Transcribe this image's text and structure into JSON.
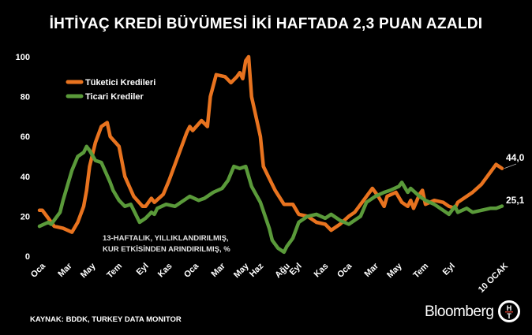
{
  "title": "İHTİYAÇ KREDİ BÜYÜMESİ İKİ HAFTADA 2,3 PUAN AZALDI",
  "source": "KAYNAK: BDDK, TURKEY DATA MONITOR",
  "brand": "Bloomberg",
  "logo_text": "HT",
  "chart_data": {
    "type": "line",
    "title": "İHTİYAÇ KREDİ BÜYÜMESİ İKİ HAFTADA 2,3 PUAN AZALDI",
    "annotation": [
      "13-HAFTALIK, YILLIKLANDIRILMIŞ,",
      "KUR ETKİSİNDEN ARINDIRILMIŞ, %"
    ],
    "ylim": [
      0,
      100
    ],
    "y_ticks": [
      0,
      20,
      40,
      60,
      80,
      100
    ],
    "grid": false,
    "legend_placement": "top-left",
    "x_unit": "week",
    "xlim": [
      0,
      157
    ],
    "x_ticks": [
      {
        "label": "Oca",
        "week": 0
      },
      {
        "label": "Mar",
        "week": 9
      },
      {
        "label": "May",
        "week": 17
      },
      {
        "label": "Tem",
        "week": 26
      },
      {
        "label": "Eyl",
        "week": 35
      },
      {
        "label": "Kas",
        "week": 43
      },
      {
        "label": "Oca",
        "week": 52
      },
      {
        "label": "Mar",
        "week": 61
      },
      {
        "label": "May",
        "week": 69
      },
      {
        "label": "Haz",
        "week": 74
      },
      {
        "label": "Ağu",
        "week": 83
      },
      {
        "label": "Eyl",
        "week": 87
      },
      {
        "label": "Kas",
        "week": 96
      },
      {
        "label": "Oca",
        "week": 104
      },
      {
        "label": "Mar",
        "week": 113
      },
      {
        "label": "May",
        "week": 121
      },
      {
        "label": "Tem",
        "week": 130
      },
      {
        "label": "Eyl",
        "week": 139
      },
      {
        "label": "10 OCAK",
        "week": 157
      }
    ],
    "series": [
      {
        "name": "Tüketici Kredileri",
        "color": "#e8731f",
        "end_label": "44,0",
        "points": [
          [
            0,
            23
          ],
          [
            1,
            23
          ],
          [
            3,
            19
          ],
          [
            5,
            15
          ],
          [
            8,
            14
          ],
          [
            11,
            12
          ],
          [
            13,
            17
          ],
          [
            15,
            25
          ],
          [
            16,
            33
          ],
          [
            17,
            45
          ],
          [
            19,
            57
          ],
          [
            21,
            65
          ],
          [
            23,
            67
          ],
          [
            24,
            60
          ],
          [
            27,
            55
          ],
          [
            29,
            40
          ],
          [
            32,
            30
          ],
          [
            35,
            25
          ],
          [
            36,
            25
          ],
          [
            38,
            29
          ],
          [
            39,
            27
          ],
          [
            42,
            31
          ],
          [
            44,
            38
          ],
          [
            47,
            50
          ],
          [
            50,
            62
          ],
          [
            51,
            65
          ],
          [
            52,
            63
          ],
          [
            55,
            68
          ],
          [
            57,
            65
          ],
          [
            58,
            80
          ],
          [
            60,
            91
          ],
          [
            63,
            90
          ],
          [
            65,
            87
          ],
          [
            67,
            90
          ],
          [
            68,
            92
          ],
          [
            69,
            89
          ],
          [
            70,
            98
          ],
          [
            71,
            100
          ],
          [
            72,
            80
          ],
          [
            75,
            60
          ],
          [
            76,
            45
          ],
          [
            78,
            39
          ],
          [
            80,
            33
          ],
          [
            83,
            26
          ],
          [
            86,
            26
          ],
          [
            88,
            21
          ],
          [
            91,
            20
          ],
          [
            94,
            17
          ],
          [
            97,
            16
          ],
          [
            99,
            13
          ],
          [
            102,
            16
          ],
          [
            105,
            20
          ],
          [
            107,
            22
          ],
          [
            110,
            28
          ],
          [
            113,
            34
          ],
          [
            115,
            30
          ],
          [
            117,
            25
          ],
          [
            118,
            30
          ],
          [
            121,
            32
          ],
          [
            123,
            27
          ],
          [
            125,
            25
          ],
          [
            126,
            28
          ],
          [
            127,
            24
          ],
          [
            129,
            31
          ],
          [
            130,
            33
          ],
          [
            131,
            26
          ],
          [
            134,
            28
          ],
          [
            137,
            27
          ],
          [
            139,
            25
          ],
          [
            141,
            24
          ],
          [
            142,
            27
          ],
          [
            145,
            30
          ],
          [
            147,
            32
          ],
          [
            150,
            36
          ],
          [
            153,
            42
          ],
          [
            155,
            46
          ],
          [
            157,
            44
          ]
        ]
      },
      {
        "name": "Ticari Krediler",
        "color": "#5a9a3a",
        "end_label": "25,1",
        "points": [
          [
            0,
            15
          ],
          [
            3,
            17
          ],
          [
            4,
            16
          ],
          [
            7,
            22
          ],
          [
            8,
            28
          ],
          [
            11,
            43
          ],
          [
            13,
            50
          ],
          [
            15,
            52
          ],
          [
            16,
            55
          ],
          [
            17,
            53
          ],
          [
            19,
            48
          ],
          [
            21,
            47
          ],
          [
            24,
            37
          ],
          [
            25,
            33
          ],
          [
            27,
            28
          ],
          [
            29,
            25
          ],
          [
            31,
            26
          ],
          [
            34,
            17
          ],
          [
            36,
            19
          ],
          [
            38,
            22
          ],
          [
            39,
            21
          ],
          [
            40,
            24
          ],
          [
            43,
            26
          ],
          [
            46,
            25
          ],
          [
            48,
            27
          ],
          [
            51,
            30
          ],
          [
            54,
            28
          ],
          [
            56,
            29
          ],
          [
            59,
            32
          ],
          [
            62,
            34
          ],
          [
            64,
            38
          ],
          [
            66,
            45
          ],
          [
            68,
            44
          ],
          [
            70,
            45
          ],
          [
            72,
            35
          ],
          [
            75,
            27
          ],
          [
            78,
            14
          ],
          [
            79,
            8
          ],
          [
            81,
            4
          ],
          [
            83,
            2
          ],
          [
            84,
            5
          ],
          [
            86,
            9
          ],
          [
            88,
            17
          ],
          [
            91,
            20
          ],
          [
            94,
            21
          ],
          [
            97,
            19
          ],
          [
            99,
            21
          ],
          [
            102,
            18
          ],
          [
            105,
            16
          ],
          [
            109,
            20
          ],
          [
            111,
            27
          ],
          [
            114,
            30
          ],
          [
            117,
            32
          ],
          [
            119,
            33
          ],
          [
            122,
            35
          ],
          [
            123,
            37
          ],
          [
            125,
            32
          ],
          [
            126,
            34
          ],
          [
            129,
            30
          ],
          [
            131,
            28
          ],
          [
            134,
            26
          ],
          [
            137,
            23
          ],
          [
            139,
            21
          ],
          [
            141,
            25
          ],
          [
            142,
            22
          ],
          [
            145,
            24
          ],
          [
            147,
            22
          ],
          [
            150,
            23
          ],
          [
            153,
            24
          ],
          [
            155,
            24
          ],
          [
            157,
            25.1
          ]
        ]
      }
    ]
  }
}
